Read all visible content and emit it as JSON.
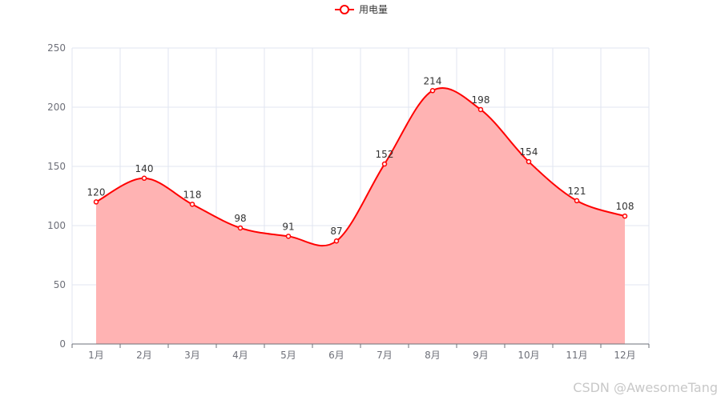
{
  "chart_data": {
    "type": "area",
    "categories": [
      "1月",
      "2月",
      "3月",
      "4月",
      "5月",
      "6月",
      "7月",
      "8月",
      "9月",
      "10月",
      "11月",
      "12月"
    ],
    "series": [
      {
        "name": "用电量",
        "values": [
          120,
          140,
          118,
          98,
          91,
          87,
          152,
          214,
          198,
          154,
          121,
          108
        ]
      }
    ],
    "ylim": [
      0,
      250
    ],
    "yticks": [
      0,
      50,
      100,
      150,
      200,
      250
    ],
    "smooth": true,
    "grid": true,
    "legend": "top-center",
    "colors": {
      "line": "#ff0000",
      "area": "#ffb3b3",
      "grid": "#e0e6f1",
      "axis": "#6e7079"
    }
  },
  "watermark": "CSDN @AwesomeTang"
}
